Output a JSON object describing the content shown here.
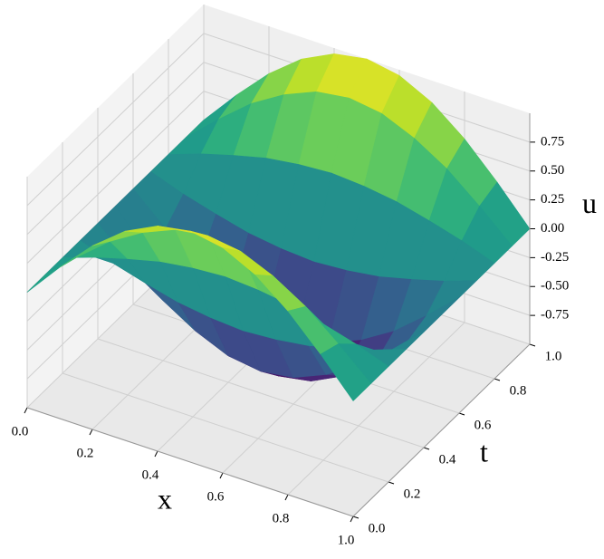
{
  "chart_data": {
    "type": "surface",
    "xlabel": "x",
    "ylabel": "t",
    "zlabel": "u",
    "x": [
      0,
      0.1,
      0.2,
      0.3,
      0.4,
      0.5,
      0.6,
      0.7,
      0.8,
      0.9,
      1
    ],
    "y": [
      0,
      0.1,
      0.2,
      0.3,
      0.4,
      0.5,
      0.6,
      0.7,
      0.8,
      0.9,
      1
    ],
    "values": [
      [
        0,
        0.31,
        0.59,
        0.81,
        0.95,
        1,
        0.95,
        0.81,
        0.59,
        0.31,
        0
      ],
      [
        0,
        0.25,
        0.48,
        0.65,
        0.77,
        0.81,
        0.77,
        0.65,
        0.48,
        0.25,
        0
      ],
      [
        0,
        0.1,
        0.18,
        0.25,
        0.29,
        0.31,
        0.29,
        0.25,
        0.18,
        0.1,
        0
      ],
      [
        0,
        -0.1,
        -0.18,
        -0.25,
        -0.29,
        -0.31,
        -0.29,
        -0.25,
        -0.18,
        -0.1,
        0
      ],
      [
        0,
        -0.25,
        -0.48,
        -0.65,
        -0.77,
        -0.81,
        -0.77,
        -0.65,
        -0.48,
        -0.25,
        0
      ],
      [
        0,
        -0.31,
        -0.59,
        -0.81,
        -0.95,
        -1,
        -0.95,
        -0.81,
        -0.59,
        -0.31,
        0
      ],
      [
        0,
        -0.25,
        -0.48,
        -0.65,
        -0.77,
        -0.81,
        -0.77,
        -0.65,
        -0.48,
        -0.25,
        0
      ],
      [
        0,
        -0.1,
        -0.18,
        -0.25,
        -0.29,
        -0.31,
        -0.29,
        -0.25,
        -0.18,
        -0.1,
        0
      ],
      [
        0,
        0.1,
        0.18,
        0.25,
        0.29,
        0.31,
        0.29,
        0.25,
        0.18,
        0.1,
        0
      ],
      [
        0,
        0.25,
        0.48,
        0.65,
        0.77,
        0.81,
        0.77,
        0.65,
        0.48,
        0.25,
        0
      ],
      [
        0,
        0.31,
        0.59,
        0.81,
        0.95,
        1,
        0.95,
        0.81,
        0.59,
        0.31,
        0
      ]
    ],
    "colormap": "viridis",
    "xlim": [
      0,
      1
    ],
    "ylim": [
      0,
      1
    ],
    "zlim": [
      -1,
      1
    ],
    "xticks": [
      {
        "value": 0,
        "label": "0.0"
      },
      {
        "value": 0.2,
        "label": "0.2"
      },
      {
        "value": 0.4,
        "label": "0.4"
      },
      {
        "value": 0.6,
        "label": "0.6"
      },
      {
        "value": 0.8,
        "label": "0.8"
      },
      {
        "value": 1,
        "label": "1.0"
      }
    ],
    "yticks": [
      {
        "value": 0,
        "label": "0.0"
      },
      {
        "value": 0.2,
        "label": "0.2"
      },
      {
        "value": 0.4,
        "label": "0.4"
      },
      {
        "value": 0.6,
        "label": "0.6"
      },
      {
        "value": 0.8,
        "label": "0.8"
      },
      {
        "value": 1,
        "label": "1.0"
      }
    ],
    "zticks": [
      {
        "value": -0.75,
        "label": "-0.75"
      },
      {
        "value": -0.5,
        "label": "-0.50"
      },
      {
        "value": -0.25,
        "label": "-0.25"
      },
      {
        "value": 0,
        "label": "0.00"
      },
      {
        "value": 0.25,
        "label": "0.25"
      },
      {
        "value": 0.5,
        "label": "0.50"
      },
      {
        "value": 0.75,
        "label": "0.75"
      }
    ],
    "grid": true
  }
}
